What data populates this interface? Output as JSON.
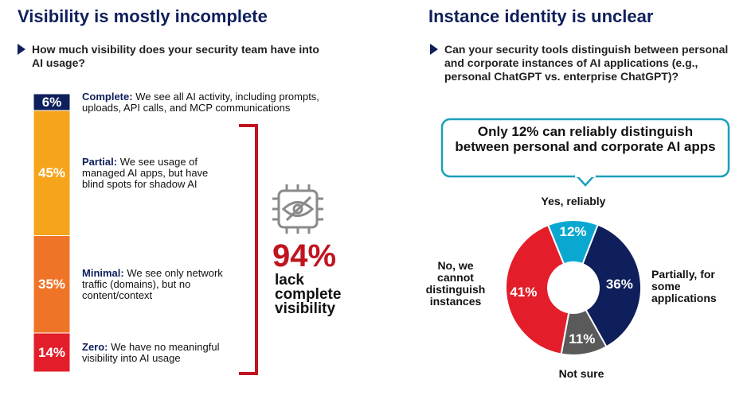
{
  "chart_data": [
    {
      "type": "bar",
      "title": "Visibility is mostly incomplete",
      "subtitle": "How much visibility does your security team have into AI usage?",
      "categories": [
        "Complete:",
        "Partial:",
        "Minimal:",
        "Zero:"
      ],
      "descriptions": [
        "We see all AI activity, including prompts, uploads, API calls, and MCP communications",
        "We see usage of managed AI apps, but have blind spots for shadow AI",
        "We see only network traffic (domains), but no content/context",
        "We have no meaningful visibility into AI usage"
      ],
      "values": [
        6,
        45,
        35,
        14
      ],
      "value_labels": [
        "6%",
        "45%",
        "35%",
        "14%"
      ],
      "colors": [
        "#0f1f5c",
        "#f6a41b",
        "#f07427",
        "#e31e2a"
      ],
      "annotation": {
        "value": "94%",
        "text": "lack complete visibility"
      }
    },
    {
      "type": "pie",
      "title": "Instance identity is unclear",
      "subtitle": "Can your security tools distinguish between personal and corporate instances of AI applications (e.g., personal ChatGPT vs. enterprise ChatGPT)?",
      "callout": "Only 12% can reliably distinguish between personal and corporate AI apps",
      "categories": [
        "Yes, reliably",
        "Partially, for some applications",
        "Not sure",
        "No, we cannot distinguish instances"
      ],
      "values": [
        12,
        36,
        11,
        41
      ],
      "value_labels": [
        "12%",
        "36%",
        "11%",
        "41%"
      ],
      "colors": [
        "#0aa8d0",
        "#0f1f5c",
        "#5a5a5a",
        "#e31e2a"
      ]
    }
  ]
}
